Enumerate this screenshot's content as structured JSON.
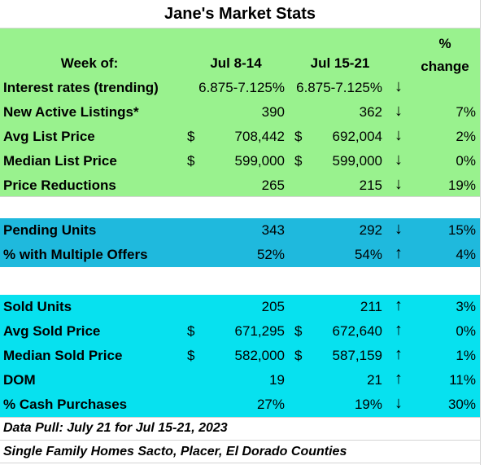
{
  "title": "Jane's Market Stats",
  "header": {
    "week_of": "Week of:",
    "col1": "Jul 8-14",
    "col2": "Jul 15-21",
    "change": "% change"
  },
  "sections": [
    {
      "rows": [
        {
          "label": "Interest rates (trending)",
          "dollar1": null,
          "v1": "6.875-7.125%",
          "dollar2": null,
          "v2": "6.875-7.125%",
          "arrow": "↓",
          "change": null
        },
        {
          "label": "New Active Listings*",
          "dollar1": null,
          "v1": "390",
          "dollar2": null,
          "v2": "362",
          "arrow": "↓",
          "change": "7%"
        },
        {
          "label": "Avg List Price",
          "dollar1": "$",
          "v1": "708,442",
          "dollar2": "$",
          "v2": "692,004",
          "arrow": "↓",
          "change": "2%"
        },
        {
          "label": "Median List Price",
          "dollar1": "$",
          "v1": "599,000",
          "dollar2": "$",
          "v2": "599,000",
          "arrow": "↓",
          "change": "0%"
        },
        {
          "label": "Price Reductions",
          "dollar1": null,
          "v1": "265",
          "dollar2": null,
          "v2": "215",
          "arrow": "↓",
          "change": "19%"
        }
      ]
    },
    {
      "rows": [
        {
          "label": "Pending Units",
          "dollar1": null,
          "v1": "343",
          "dollar2": null,
          "v2": "292",
          "arrow": "↓",
          "change": "15%"
        },
        {
          "label": "% with Multiple Offers",
          "dollar1": null,
          "v1": "52%",
          "dollar2": null,
          "v2": "54%",
          "arrow": "↑",
          "change": "4%"
        }
      ]
    },
    {
      "rows": [
        {
          "label": "Sold Units",
          "dollar1": null,
          "v1": "205",
          "dollar2": null,
          "v2": "211",
          "arrow": "↑",
          "change": "3%"
        },
        {
          "label": "Avg Sold Price",
          "dollar1": "$",
          "v1": "671,295",
          "dollar2": "$",
          "v2": "672,640",
          "arrow": "↑",
          "change": "0%"
        },
        {
          "label": "Median Sold Price",
          "dollar1": "$",
          "v1": "582,000",
          "dollar2": "$",
          "v2": "587,159",
          "arrow": "↑",
          "change": "1%"
        },
        {
          "label": "DOM",
          "dollar1": null,
          "v1": "19",
          "dollar2": null,
          "v2": "21",
          "arrow": "↑",
          "change": "11%"
        },
        {
          "label": "% Cash Purchases",
          "dollar1": null,
          "v1": "27%",
          "dollar2": null,
          "v2": "19%",
          "arrow": "↓",
          "change": "30%"
        }
      ]
    }
  ],
  "footnotes": [
    "Data Pull: July 21 for Jul 15-21, 2023",
    "Single Family Homes Sacto, Placer, El Dorado Counties"
  ]
}
